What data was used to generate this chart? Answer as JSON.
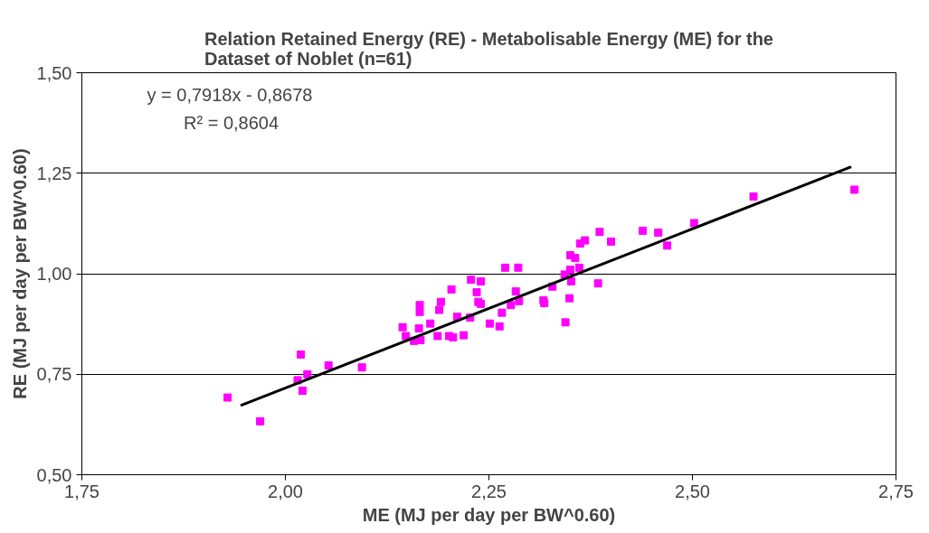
{
  "chart_data": {
    "type": "scatter",
    "title": "Relation Retained Energy (RE) - Metabolisable Energy (ME) for the Dataset of Noblet (n=61)",
    "xlabel": "ME (MJ per day per BW^0.60)",
    "ylabel": "RE (MJ per day per BW^0.60)",
    "grid": "y",
    "xlim": [
      1.75,
      2.75
    ],
    "ylim": [
      0.5,
      1.5
    ],
    "xticks": [
      {
        "value": 1.75,
        "label": "1,75"
      },
      {
        "value": 2.0,
        "label": "2,00"
      },
      {
        "value": 2.25,
        "label": "2,25"
      },
      {
        "value": 2.5,
        "label": "2,50"
      },
      {
        "value": 2.75,
        "label": "2,75"
      }
    ],
    "yticks": [
      {
        "value": 0.5,
        "label": "0,50"
      },
      {
        "value": 0.75,
        "label": "0,75"
      },
      {
        "value": 1.0,
        "label": "1,00"
      },
      {
        "value": 1.25,
        "label": "1,25"
      },
      {
        "value": 1.5,
        "label": "1,50"
      }
    ],
    "annotations": [
      "y = 0,7918x - 0,8678",
      "R² = 0,8604"
    ],
    "series": [
      {
        "marker": "square",
        "color": "#ff00ff",
        "x": [
          1.929,
          1.969,
          2.015,
          2.019,
          2.021,
          2.027,
          2.053,
          2.094,
          2.144,
          2.148,
          2.158,
          2.164,
          2.165,
          2.165,
          2.166,
          2.178,
          2.187,
          2.189,
          2.191,
          2.201,
          2.204,
          2.206,
          2.211,
          2.219,
          2.227,
          2.228,
          2.235,
          2.237,
          2.24,
          2.24,
          2.251,
          2.263,
          2.266,
          2.27,
          2.277,
          2.283,
          2.286,
          2.287,
          2.317,
          2.318,
          2.328,
          2.343,
          2.344,
          2.349,
          2.35,
          2.35,
          2.351,
          2.356,
          2.361,
          2.362,
          2.368,
          2.384,
          2.386,
          2.4,
          2.439,
          2.458,
          2.469,
          2.502,
          2.575,
          2.699
        ],
        "values": [
          0.692,
          0.633,
          0.735,
          0.799,
          0.709,
          0.75,
          0.772,
          0.767,
          0.867,
          0.845,
          0.833,
          0.864,
          0.922,
          0.905,
          0.835,
          0.876,
          0.845,
          0.91,
          0.93,
          0.845,
          0.961,
          0.842,
          0.893,
          0.847,
          0.891,
          0.985,
          0.954,
          0.93,
          0.981,
          0.925,
          0.876,
          0.869,
          0.903,
          1.015,
          0.922,
          0.956,
          1.015,
          0.932,
          0.934,
          0.927,
          0.968,
          0.998,
          0.879,
          0.939,
          1.046,
          1.01,
          0.981,
          1.039,
          1.015,
          1.075,
          1.083,
          0.976,
          1.104,
          1.08,
          1.107,
          1.102,
          1.07,
          1.126,
          1.192,
          1.209
        ]
      },
      {
        "type": "line",
        "color": "#000000",
        "x": [
          1.945,
          2.695
        ],
        "values": [
          0.672,
          1.266
        ]
      }
    ]
  }
}
